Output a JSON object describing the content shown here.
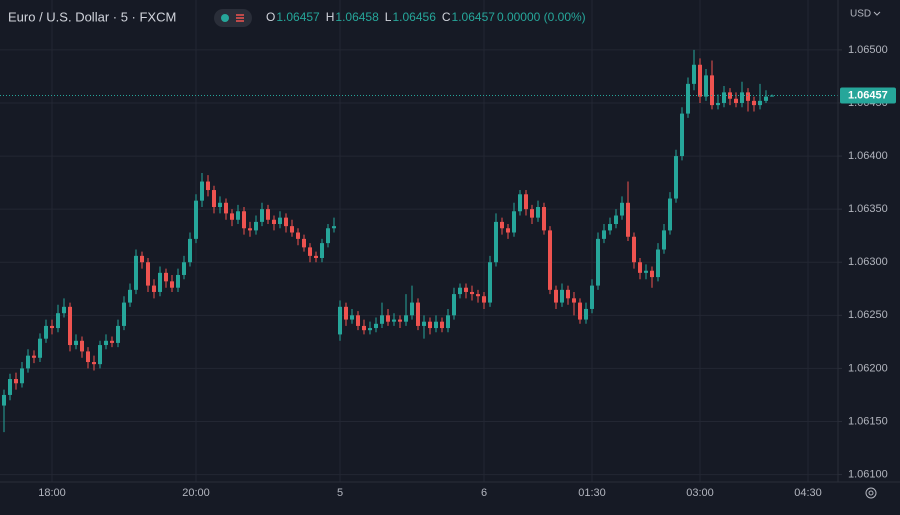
{
  "chart_data": {
    "type": "candlestick",
    "title": "Euro / U.S. Dollar · 5 · FXCM",
    "currency": "USD",
    "header": [
      {
        "label": "O",
        "value": "1.06457"
      },
      {
        "label": "H",
        "value": "1.06458"
      },
      {
        "label": "L",
        "value": "1.06456"
      },
      {
        "label": "C",
        "value": "1.06457"
      }
    ],
    "change": "0.00000 (0.00%)",
    "up_color": "#26a69a",
    "down_color": "#ef5350",
    "grid": true,
    "ylim": [
      1.06093,
      1.06547
    ],
    "yticks": [
      {
        "value": 1.061,
        "label": "1.06100"
      },
      {
        "value": 1.0615,
        "label": "1.06150"
      },
      {
        "value": 1.062,
        "label": "1.06200"
      },
      {
        "value": 1.0625,
        "label": "1.06250"
      },
      {
        "value": 1.063,
        "label": "1.06300"
      },
      {
        "value": 1.0635,
        "label": "1.06350"
      },
      {
        "value": 1.064,
        "label": "1.06400"
      },
      {
        "value": 1.0645,
        "label": "1.06450"
      },
      {
        "value": 1.065,
        "label": "1.06500"
      }
    ],
    "last_price": {
      "value": 1.06457,
      "label": "1.06457"
    },
    "categories": [
      null,
      null,
      null,
      null,
      null,
      null,
      null,
      null,
      "18:00",
      null,
      null,
      null,
      null,
      null,
      null,
      null,
      null,
      null,
      null,
      null,
      null,
      null,
      null,
      null,
      null,
      null,
      null,
      null,
      null,
      null,
      null,
      null,
      "20:00",
      null,
      null,
      null,
      null,
      null,
      null,
      null,
      null,
      null,
      null,
      null,
      null,
      null,
      null,
      null,
      null,
      null,
      null,
      null,
      null,
      null,
      null,
      null,
      "5",
      null,
      null,
      null,
      null,
      null,
      null,
      null,
      null,
      null,
      null,
      null,
      null,
      null,
      null,
      null,
      null,
      null,
      null,
      null,
      null,
      null,
      null,
      null,
      "6",
      null,
      null,
      null,
      null,
      null,
      null,
      null,
      null,
      null,
      null,
      null,
      null,
      null,
      null,
      null,
      null,
      null,
      "01:30",
      null,
      null,
      null,
      null,
      null,
      null,
      null,
      null,
      null,
      null,
      null,
      null,
      null,
      null,
      null,
      null,
      null,
      "03:00",
      null,
      null,
      null,
      null,
      null,
      null,
      null,
      null,
      null,
      null,
      null,
      null,
      null,
      null,
      null,
      null,
      null,
      "04:30",
      null,
      null,
      null,
      null,
      null
    ],
    "open": [
      1.06165,
      1.06175,
      1.0619,
      1.06186,
      1.062,
      1.06212,
      1.0621,
      1.06228,
      1.0624,
      1.06238,
      1.06252,
      1.06258,
      1.06222,
      1.06226,
      1.06216,
      1.06206,
      1.06204,
      1.06222,
      1.06226,
      1.06224,
      1.0624,
      1.06262,
      1.06274,
      1.06306,
      1.063,
      1.06278,
      1.06272,
      1.0629,
      1.06282,
      1.06276,
      1.06288,
      1.063,
      1.06322,
      1.06358,
      1.06376,
      1.06368,
      1.06352,
      1.06356,
      1.06346,
      1.0634,
      1.06348,
      1.06332,
      1.0633,
      1.06338,
      1.0635,
      1.0634,
      1.06336,
      1.06342,
      1.06334,
      1.06328,
      1.06322,
      1.06314,
      1.06306,
      1.06304,
      1.06318,
      1.06332,
      1.06232,
      1.06258,
      1.06246,
      1.0625,
      1.0624,
      1.06236,
      1.06238,
      1.06242,
      1.0625,
      1.06244,
      1.06246,
      1.06244,
      1.0625,
      1.06262,
      1.0624,
      1.06244,
      1.06238,
      1.06244,
      1.06238,
      1.0625,
      1.0627,
      1.06276,
      1.06272,
      1.0627,
      1.06268,
      1.06262,
      1.063,
      1.06338,
      1.06332,
      1.06328,
      1.06348,
      1.06364,
      1.0635,
      1.06342,
      1.06352,
      1.0633,
      1.06274,
      1.06262,
      1.06274,
      1.06266,
      1.06262,
      1.06246,
      1.06256,
      1.06278,
      1.06322,
      1.0633,
      1.06336,
      1.06344,
      1.06356,
      1.06324,
      1.063,
      1.0629,
      1.06292,
      1.06286,
      1.06312,
      1.0633,
      1.0636,
      1.064,
      1.0644,
      1.06468,
      1.06486,
      1.06456,
      1.06476,
      1.06448,
      1.0645,
      1.0646,
      1.06454,
      1.0645,
      1.0646,
      1.06452,
      1.06448,
      1.06452,
      1.06457,
      null,
      null,
      null,
      null,
      null,
      null,
      null,
      null,
      null,
      null,
      null
    ],
    "high": [
      1.0618,
      1.06195,
      1.06196,
      1.06206,
      1.06218,
      1.06217,
      1.06233,
      1.06246,
      1.06246,
      1.0626,
      1.06266,
      1.06262,
      1.06232,
      1.0623,
      1.0622,
      1.06212,
      1.06226,
      1.06232,
      1.0623,
      1.06246,
      1.06268,
      1.0628,
      1.06312,
      1.0631,
      1.06304,
      1.06284,
      1.06296,
      1.06294,
      1.06288,
      1.06294,
      1.06306,
      1.06328,
      1.06364,
      1.06384,
      1.06382,
      1.06372,
      1.06362,
      1.0636,
      1.0635,
      1.06354,
      1.06352,
      1.06338,
      1.06344,
      1.06356,
      1.06354,
      1.06344,
      1.06348,
      1.06346,
      1.0634,
      1.06332,
      1.06326,
      1.06318,
      1.0631,
      1.06322,
      1.06336,
      1.06342,
      1.06264,
      1.06262,
      1.06256,
      1.06254,
      1.06246,
      1.06244,
      1.06248,
      1.06262,
      1.06256,
      1.06252,
      1.0625,
      1.0627,
      1.06278,
      1.06266,
      1.0625,
      1.06248,
      1.0625,
      1.06248,
      1.06256,
      1.06276,
      1.0628,
      1.0628,
      1.06278,
      1.06274,
      1.06272,
      1.06306,
      1.06346,
      1.06342,
      1.06336,
      1.06356,
      1.06368,
      1.06368,
      1.06354,
      1.06358,
      1.06356,
      1.06334,
      1.06278,
      1.0628,
      1.06278,
      1.06272,
      1.06266,
      1.06262,
      1.06284,
      1.06328,
      1.06336,
      1.06342,
      1.0635,
      1.06362,
      1.06376,
      1.06328,
      1.06304,
      1.06298,
      1.06296,
      1.06318,
      1.06336,
      1.06366,
      1.06406,
      1.06446,
      1.06474,
      1.065,
      1.06492,
      1.06482,
      1.0649,
      1.06458,
      1.06466,
      1.06464,
      1.0646,
      1.0647,
      1.06464,
      1.06456,
      1.06468,
      1.06462,
      1.06458,
      null,
      null,
      null,
      null,
      null,
      null,
      null,
      null,
      null,
      null,
      null
    ],
    "low": [
      1.0614,
      1.0617,
      1.0618,
      1.06182,
      1.06196,
      1.06205,
      1.06206,
      1.06224,
      1.06232,
      1.06234,
      1.06248,
      1.06216,
      1.06218,
      1.0621,
      1.062,
      1.06198,
      1.062,
      1.06218,
      1.0622,
      1.0622,
      1.06236,
      1.06258,
      1.0627,
      1.06294,
      1.06272,
      1.06266,
      1.06268,
      1.06276,
      1.06272,
      1.06272,
      1.06284,
      1.06296,
      1.06318,
      1.06352,
      1.06362,
      1.06346,
      1.06346,
      1.0634,
      1.06334,
      1.06336,
      1.06326,
      1.06324,
      1.06326,
      1.06334,
      1.06336,
      1.0633,
      1.06332,
      1.06328,
      1.06324,
      1.06316,
      1.0631,
      1.063,
      1.063,
      1.063,
      1.06314,
      1.06328,
      1.06226,
      1.0624,
      1.06242,
      1.06236,
      1.06232,
      1.06232,
      1.06234,
      1.06238,
      1.0624,
      1.0624,
      1.06238,
      1.0624,
      1.06246,
      1.06236,
      1.06228,
      1.06232,
      1.06234,
      1.06234,
      1.06234,
      1.06246,
      1.06266,
      1.06266,
      1.06264,
      1.06262,
      1.06256,
      1.06258,
      1.06296,
      1.06326,
      1.06322,
      1.06324,
      1.06344,
      1.06344,
      1.06336,
      1.06338,
      1.06326,
      1.0627,
      1.06256,
      1.06258,
      1.0626,
      1.0625,
      1.06242,
      1.06242,
      1.06252,
      1.06274,
      1.06318,
      1.06326,
      1.06332,
      1.0634,
      1.0632,
      1.06294,
      1.06284,
      1.06284,
      1.06276,
      1.06282,
      1.06308,
      1.06326,
      1.06356,
      1.06396,
      1.06436,
      1.06462,
      1.0645,
      1.06452,
      1.06444,
      1.06444,
      1.06446,
      1.06448,
      1.06446,
      1.06446,
      1.06442,
      1.06442,
      1.06444,
      1.0645,
      1.06456,
      null,
      null,
      null,
      null,
      null,
      null,
      null,
      null,
      null,
      null,
      null
    ],
    "close": [
      1.06175,
      1.0619,
      1.06186,
      1.062,
      1.06212,
      1.0621,
      1.06228,
      1.0624,
      1.06238,
      1.06252,
      1.06258,
      1.06222,
      1.06226,
      1.06216,
      1.06206,
      1.06204,
      1.06222,
      1.06226,
      1.06224,
      1.0624,
      1.06262,
      1.06274,
      1.06306,
      1.063,
      1.06278,
      1.06272,
      1.0629,
      1.06282,
      1.06276,
      1.06288,
      1.063,
      1.06322,
      1.06358,
      1.06376,
      1.06368,
      1.06352,
      1.06356,
      1.06346,
      1.0634,
      1.06348,
      1.06332,
      1.0633,
      1.06338,
      1.0635,
      1.0634,
      1.06336,
      1.06342,
      1.06334,
      1.06328,
      1.06322,
      1.06314,
      1.06306,
      1.06304,
      1.06318,
      1.06332,
      1.06334,
      1.06258,
      1.06246,
      1.0625,
      1.0624,
      1.06236,
      1.06238,
      1.06242,
      1.0625,
      1.06244,
      1.06246,
      1.06244,
      1.0625,
      1.06262,
      1.0624,
      1.06244,
      1.06238,
      1.06244,
      1.06238,
      1.0625,
      1.0627,
      1.06276,
      1.06272,
      1.0627,
      1.06268,
      1.06262,
      1.063,
      1.06338,
      1.06332,
      1.06328,
      1.06348,
      1.06364,
      1.0635,
      1.06342,
      1.06352,
      1.0633,
      1.06274,
      1.06262,
      1.06274,
      1.06266,
      1.06262,
      1.06246,
      1.06256,
      1.06278,
      1.06322,
      1.0633,
      1.06336,
      1.06344,
      1.06356,
      1.06324,
      1.063,
      1.0629,
      1.06292,
      1.06286,
      1.06312,
      1.0633,
      1.0636,
      1.064,
      1.0644,
      1.06468,
      1.06486,
      1.06456,
      1.06476,
      1.06448,
      1.0645,
      1.0646,
      1.06454,
      1.0645,
      1.0646,
      1.06452,
      1.06448,
      1.06452,
      1.06456,
      1.06457,
      null,
      null,
      null,
      null,
      null,
      null,
      null,
      null,
      null,
      null,
      null
    ]
  }
}
